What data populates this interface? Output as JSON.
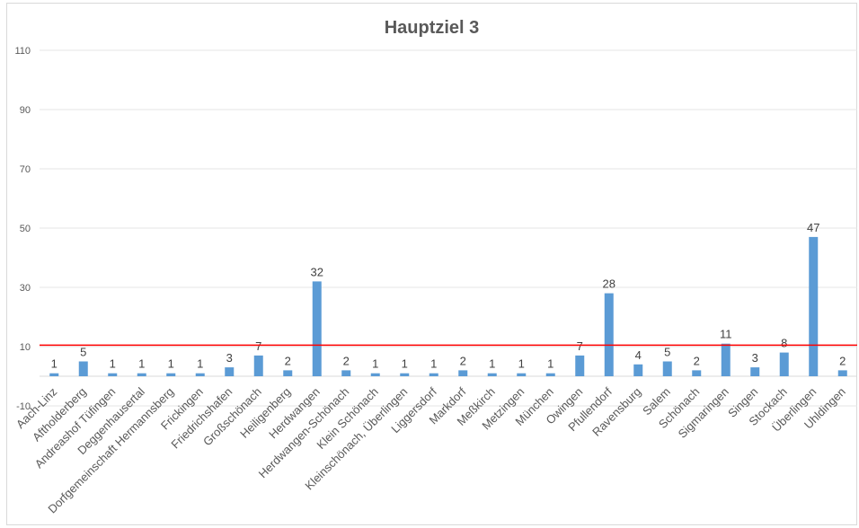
{
  "chart_data": {
    "type": "bar",
    "title": "Hauptziel 3",
    "categories": [
      "Aach-Linz",
      "Aftholderberg",
      "Andreashof Tüfingen",
      "Deggenhausertal",
      "Dorfgemeinschaft Hermannsberg",
      "Frickingen",
      "Friedrichshafen",
      "Großschönach",
      "Heiligenberg",
      "Herdwangen",
      "Herdwangen-Schönach",
      "Klein Schönach",
      "Kleinschönach, Überlingen",
      "Liggersdorf",
      "Markdorf",
      "Meßkirch",
      "Metzingen",
      "München",
      "Owingen",
      "Pfullendorf",
      "Ravensburg",
      "Salem",
      "Schönach",
      "Sigmaringen",
      "Singen",
      "Stockach",
      "Überlingen",
      "Uhldingen"
    ],
    "values": [
      1,
      5,
      1,
      1,
      1,
      1,
      3,
      7,
      2,
      32,
      2,
      1,
      1,
      1,
      2,
      1,
      1,
      1,
      7,
      28,
      4,
      5,
      2,
      11,
      3,
      8,
      47,
      2
    ],
    "ylim": [
      -10,
      110
    ],
    "yticks": [
      -10,
      10,
      30,
      50,
      70,
      90,
      110
    ],
    "reference_line": 10.5,
    "colors": {
      "bar": "#5b9bd5",
      "reference_line": "#ff0000",
      "grid": "#e6e6e6"
    }
  }
}
